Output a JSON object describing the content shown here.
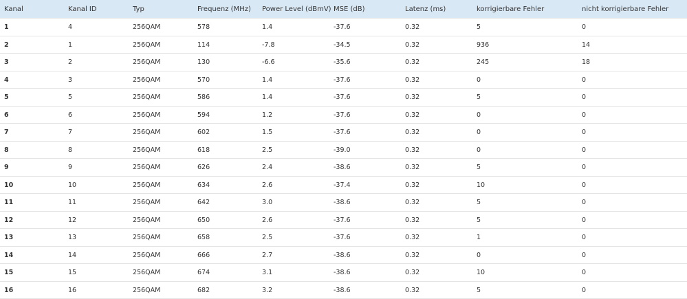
{
  "table": {
    "header": [
      "Kanal",
      "Kanal ID",
      "Typ",
      "Frequenz (MHz)",
      "Power Level (dBmV)",
      "MSE (dB)",
      "Latenz (ms)",
      "korrigierbare Fehler",
      "nicht korrigierbare Fehler"
    ],
    "rows": [
      [
        "1",
        "4",
        "256QAM",
        "578",
        "1.4",
        "-37.6",
        "0.32",
        "5",
        "0"
      ],
      [
        "2",
        "1",
        "256QAM",
        "114",
        "-7.8",
        "-34.5",
        "0.32",
        "936",
        "14"
      ],
      [
        "3",
        "2",
        "256QAM",
        "130",
        "-6.6",
        "-35.6",
        "0.32",
        "245",
        "18"
      ],
      [
        "4",
        "3",
        "256QAM",
        "570",
        "1.4",
        "-37.6",
        "0.32",
        "0",
        "0"
      ],
      [
        "5",
        "5",
        "256QAM",
        "586",
        "1.4",
        "-37.6",
        "0.32",
        "5",
        "0"
      ],
      [
        "6",
        "6",
        "256QAM",
        "594",
        "1.2",
        "-37.6",
        "0.32",
        "0",
        "0"
      ],
      [
        "7",
        "7",
        "256QAM",
        "602",
        "1.5",
        "-37.6",
        "0.32",
        "0",
        "0"
      ],
      [
        "8",
        "8",
        "256QAM",
        "618",
        "2.5",
        "-39.0",
        "0.32",
        "0",
        "0"
      ],
      [
        "9",
        "9",
        "256QAM",
        "626",
        "2.4",
        "-38.6",
        "0.32",
        "5",
        "0"
      ],
      [
        "10",
        "10",
        "256QAM",
        "634",
        "2.6",
        "-37.4",
        "0.32",
        "10",
        "0"
      ],
      [
        "11",
        "11",
        "256QAM",
        "642",
        "3.0",
        "-38.6",
        "0.32",
        "5",
        "0"
      ],
      [
        "12",
        "12",
        "256QAM",
        "650",
        "2.6",
        "-37.6",
        "0.32",
        "5",
        "0"
      ],
      [
        "13",
        "13",
        "256QAM",
        "658",
        "2.5",
        "-37.6",
        "0.32",
        "1",
        "0"
      ],
      [
        "14",
        "14",
        "256QAM",
        "666",
        "2.7",
        "-38.6",
        "0.32",
        "0",
        "0"
      ],
      [
        "15",
        "15",
        "256QAM",
        "674",
        "3.1",
        "-38.6",
        "0.32",
        "10",
        "0"
      ],
      [
        "16",
        "16",
        "256QAM",
        "682",
        "3.2",
        "-38.6",
        "0.32",
        "5",
        "0"
      ]
    ]
  }
}
